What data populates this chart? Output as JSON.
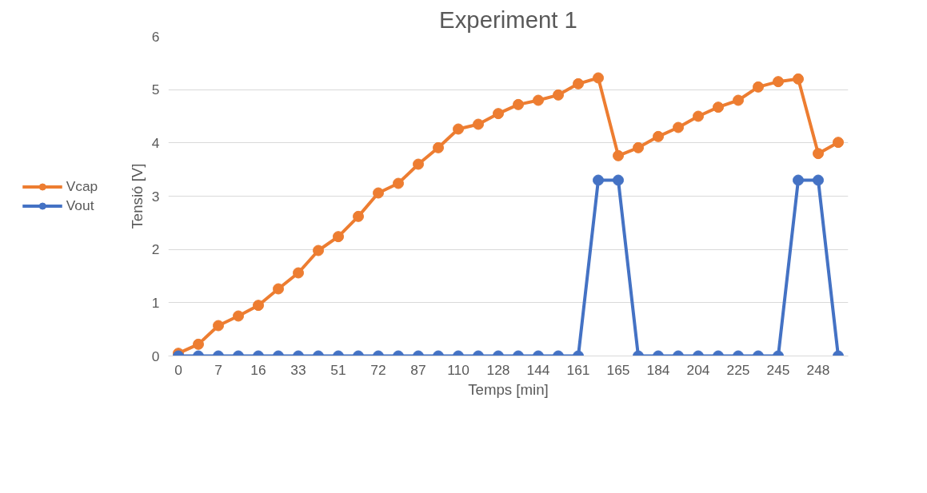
{
  "chart_data": {
    "type": "line",
    "title": "Experiment 1",
    "xlabel": "Temps [min]",
    "ylabel": "Tensió [V]",
    "categories": [
      "0",
      null,
      "7",
      null,
      "16",
      null,
      "33",
      null,
      "51",
      null,
      "72",
      null,
      "87",
      null,
      "110",
      null,
      "128",
      null,
      "144",
      null,
      "161",
      null,
      "165",
      null,
      "184",
      null,
      "204",
      null,
      "225",
      null,
      "245",
      null,
      "248",
      null
    ],
    "series": [
      {
        "name": "Vcap",
        "color": "#ed7d31",
        "values": [
          0.05,
          0.22,
          0.57,
          0.75,
          0.95,
          1.26,
          1.56,
          1.98,
          2.24,
          2.62,
          3.06,
          3.24,
          3.6,
          3.91,
          4.26,
          4.35,
          4.55,
          4.72,
          4.8,
          4.9,
          5.11,
          5.22,
          3.76,
          3.91,
          4.12,
          4.29,
          4.5,
          4.67,
          4.8,
          5.05,
          5.15,
          5.2,
          3.8,
          4.01
        ]
      },
      {
        "name": "Vout",
        "color": "#4472c4",
        "values": [
          0,
          0,
          0,
          0,
          0,
          0,
          0,
          0,
          0,
          0,
          0,
          0,
          0,
          0,
          0,
          0,
          0,
          0,
          0,
          0,
          0,
          3.3,
          3.3,
          0,
          0,
          0,
          0,
          0,
          0,
          0,
          0,
          3.3,
          3.3,
          0
        ]
      }
    ],
    "ylim": [
      0,
      6
    ],
    "yticks": [
      0,
      1,
      2,
      3,
      4,
      5,
      6
    ],
    "grid": "y",
    "legend": "left",
    "marker": "circle",
    "line_style": "solid"
  }
}
